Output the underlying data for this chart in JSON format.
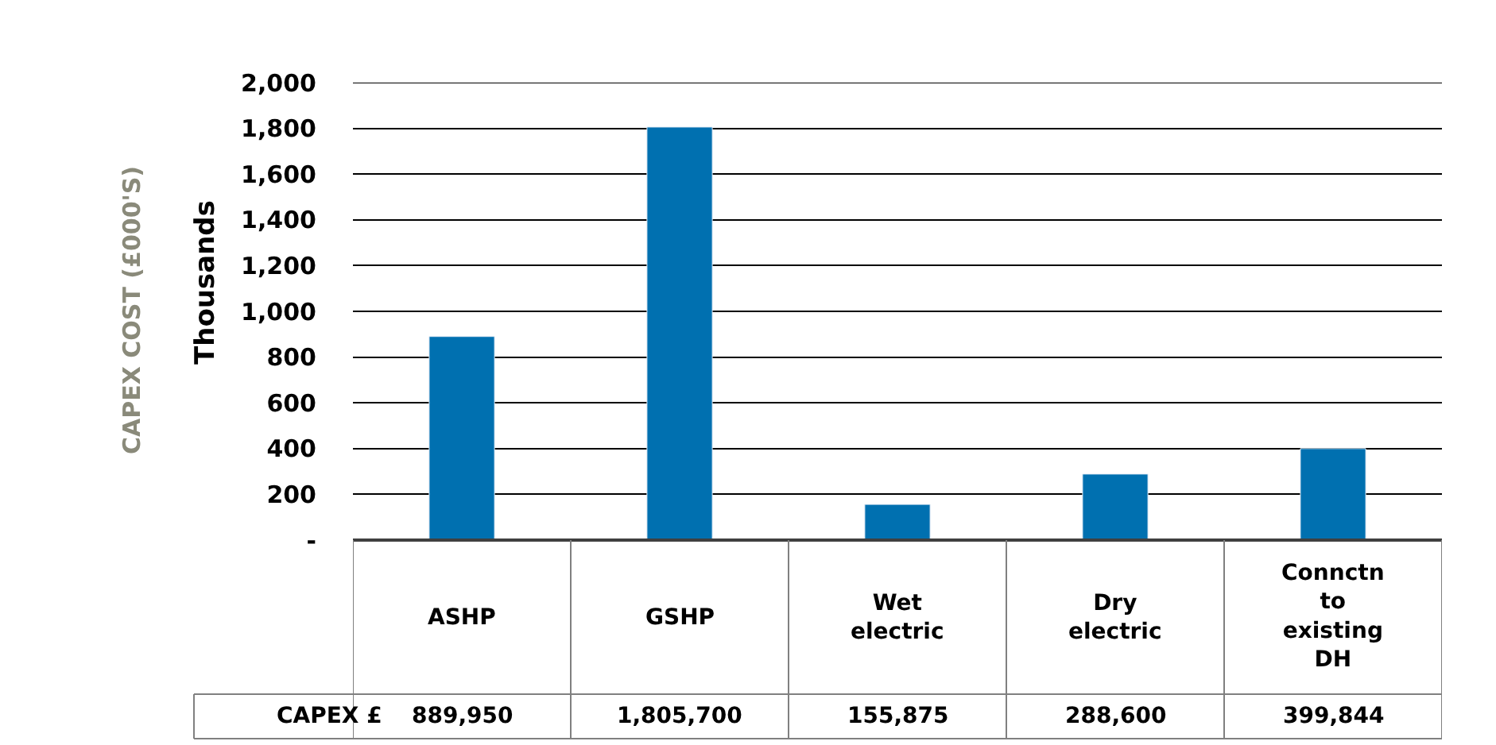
{
  "chart_data": {
    "type": "bar",
    "ylabel": "CAPEX COST (£000'S)",
    "annotations": [
      "Thousands",
      "CAPEX £",
      "889,950",
      "1,805,700",
      "155,875",
      "288,600",
      "399,844"
    ],
    "categories": [
      "ASHP",
      "GSHP",
      "Wet electric",
      "Dry electric",
      "Connctn to existing DH"
    ],
    "values": [
      889.95,
      1805.7,
      155.875,
      288.6,
      399.844
    ],
    "color": "#0070b0",
    "ylim": [
      0,
      2000
    ],
    "yticks": [
      {
        "value": 0,
        "label": "-"
      },
      200,
      400,
      600,
      800,
      {
        "value": 1000,
        "label": "1,000"
      },
      {
        "value": 1200,
        "label": "1,200"
      },
      {
        "value": 1400,
        "label": "1,400"
      },
      {
        "value": 1600,
        "label": "1,600"
      },
      {
        "value": 1800,
        "label": "1,800"
      },
      {
        "value": 2000,
        "label": "2,000"
      }
    ],
    "grid": "y"
  }
}
